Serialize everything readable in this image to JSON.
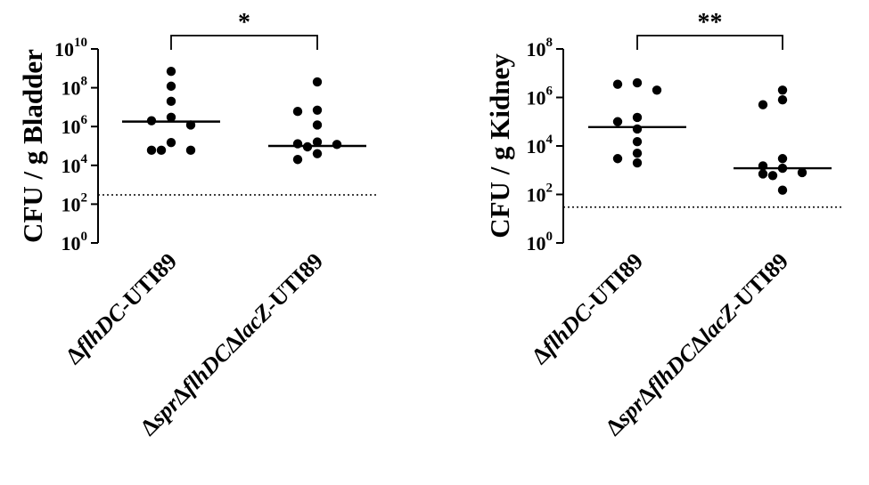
{
  "chart_data": [
    {
      "type": "scatter",
      "ylabel": "CFU / g Bladder",
      "yscale": "log10",
      "ylim": [
        1,
        10000000000
      ],
      "yticks": [
        {
          "base": "10",
          "exp": "0",
          "value": 1
        },
        {
          "base": "10",
          "exp": "2",
          "value": 100
        },
        {
          "base": "10",
          "exp": "4",
          "value": 10000
        },
        {
          "base": "10",
          "exp": "6",
          "value": 1000000
        },
        {
          "base": "10",
          "exp": "8",
          "value": 100000000
        },
        {
          "base": "10",
          "exp": "10",
          "value": 10000000000
        }
      ],
      "categories": [
        {
          "parts": [
            {
              "t": "Δ",
              "i": false
            },
            {
              "t": "flhDC",
              "i": true
            },
            {
              "t": "-UTI89",
              "i": false
            }
          ]
        },
        {
          "parts": [
            {
              "t": "Δ",
              "i": false
            },
            {
              "t": "spr",
              "i": true
            },
            {
              "t": "Δ",
              "i": false
            },
            {
              "t": "flhDC",
              "i": true
            },
            {
              "t": "Δ",
              "i": false
            },
            {
              "t": "lacZ",
              "i": true
            },
            {
              "t": "-UTI89",
              "i": false
            }
          ]
        }
      ],
      "series": [
        {
          "values": [
            700000000,
            120000000,
            20000000,
            3000000,
            2000000,
            1200000,
            150000,
            60000,
            60000,
            60000
          ],
          "median": 1800000
        },
        {
          "values": [
            200000000,
            7000000,
            6000000,
            1200000,
            160000,
            130000,
            120000,
            90000,
            40000,
            20000
          ],
          "median": 100000
        }
      ],
      "detection_limit": 300,
      "significance": "*"
    },
    {
      "type": "scatter",
      "ylabel": "CFU / g Kidney",
      "yscale": "log10",
      "ylim": [
        1,
        100000000
      ],
      "yticks": [
        {
          "base": "10",
          "exp": "0",
          "value": 1
        },
        {
          "base": "10",
          "exp": "2",
          "value": 100
        },
        {
          "base": "10",
          "exp": "4",
          "value": 10000
        },
        {
          "base": "10",
          "exp": "6",
          "value": 1000000
        },
        {
          "base": "10",
          "exp": "8",
          "value": 100000000
        }
      ],
      "categories": [
        {
          "parts": [
            {
              "t": "Δ",
              "i": false
            },
            {
              "t": "flhDC",
              "i": true
            },
            {
              "t": "-UTI89",
              "i": false
            }
          ]
        },
        {
          "parts": [
            {
              "t": "Δ",
              "i": false
            },
            {
              "t": "spr",
              "i": true
            },
            {
              "t": "Δ",
              "i": false
            },
            {
              "t": "flhDC",
              "i": true
            },
            {
              "t": "Δ",
              "i": false
            },
            {
              "t": "lacZ",
              "i": true
            },
            {
              "t": "-UTI89",
              "i": false
            }
          ]
        }
      ],
      "series": [
        {
          "values": [
            4000000,
            3500000,
            2000000,
            150000,
            100000,
            50000,
            15000,
            5000,
            3000,
            2000
          ],
          "median": 60000
        },
        {
          "values": [
            2000000,
            800000,
            500000,
            3000,
            1500,
            1200,
            800,
            700,
            600,
            150
          ],
          "median": 1200
        }
      ],
      "detection_limit": 30,
      "significance": "**"
    }
  ]
}
